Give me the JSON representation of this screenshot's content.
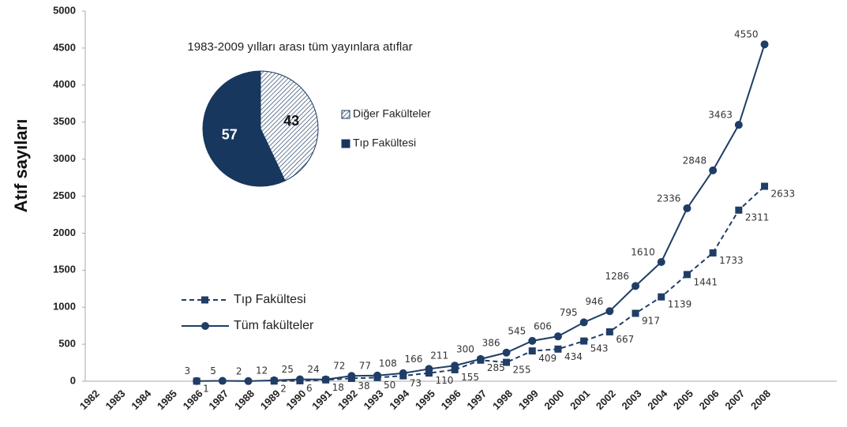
{
  "chart_data": [
    {
      "type": "line",
      "y_label": "Atıf  sayıları",
      "categories": [
        "1982",
        "1983",
        "1984",
        "1985",
        "1986",
        "1987",
        "1988",
        "1989",
        "1990",
        "1991",
        "1992",
        "1993",
        "1994",
        "1995",
        "1996",
        "1997",
        "1998",
        "1999",
        "2000",
        "2001",
        "2002",
        "2003",
        "2004",
        "2005",
        "2006",
        "2007",
        "2008"
      ],
      "series": [
        {
          "name": "Tıp Fakültesi",
          "color": "#1f3d66",
          "dashed": true,
          "marker": "square",
          "values": [
            null,
            null,
            null,
            null,
            1,
            null,
            null,
            2,
            6,
            18,
            38,
            50,
            73,
            110,
            155,
            285,
            255,
            409,
            434,
            543,
            667,
            917,
            1139,
            1441,
            1733,
            2311,
            2633
          ]
        },
        {
          "name": "Tüm fakülteler",
          "color": "#1f3d66",
          "dashed": false,
          "marker": "circle",
          "values": [
            null,
            null,
            null,
            null,
            3,
            5,
            2,
            12,
            25,
            24,
            72,
            77,
            108,
            166,
            211,
            300,
            386,
            545,
            606,
            795,
            946,
            1286,
            1610,
            2336,
            2848,
            3463,
            4550
          ]
        }
      ],
      "ylim": [
        0,
        5000
      ],
      "yticks": [
        0,
        500,
        1000,
        1500,
        2000,
        2500,
        3000,
        3500,
        4000,
        4500,
        5000
      ],
      "grid": false
    },
    {
      "type": "pie",
      "title": "1983-2009 yılları arası tüm yayınlara atıflar",
      "categories": [
        "Diğer Fakülteler",
        "Tıp Fakültesi"
      ],
      "values": [
        43,
        57
      ],
      "colors": [
        "#17375e",
        "#17375e"
      ],
      "hatched": [
        true,
        false
      ]
    }
  ]
}
